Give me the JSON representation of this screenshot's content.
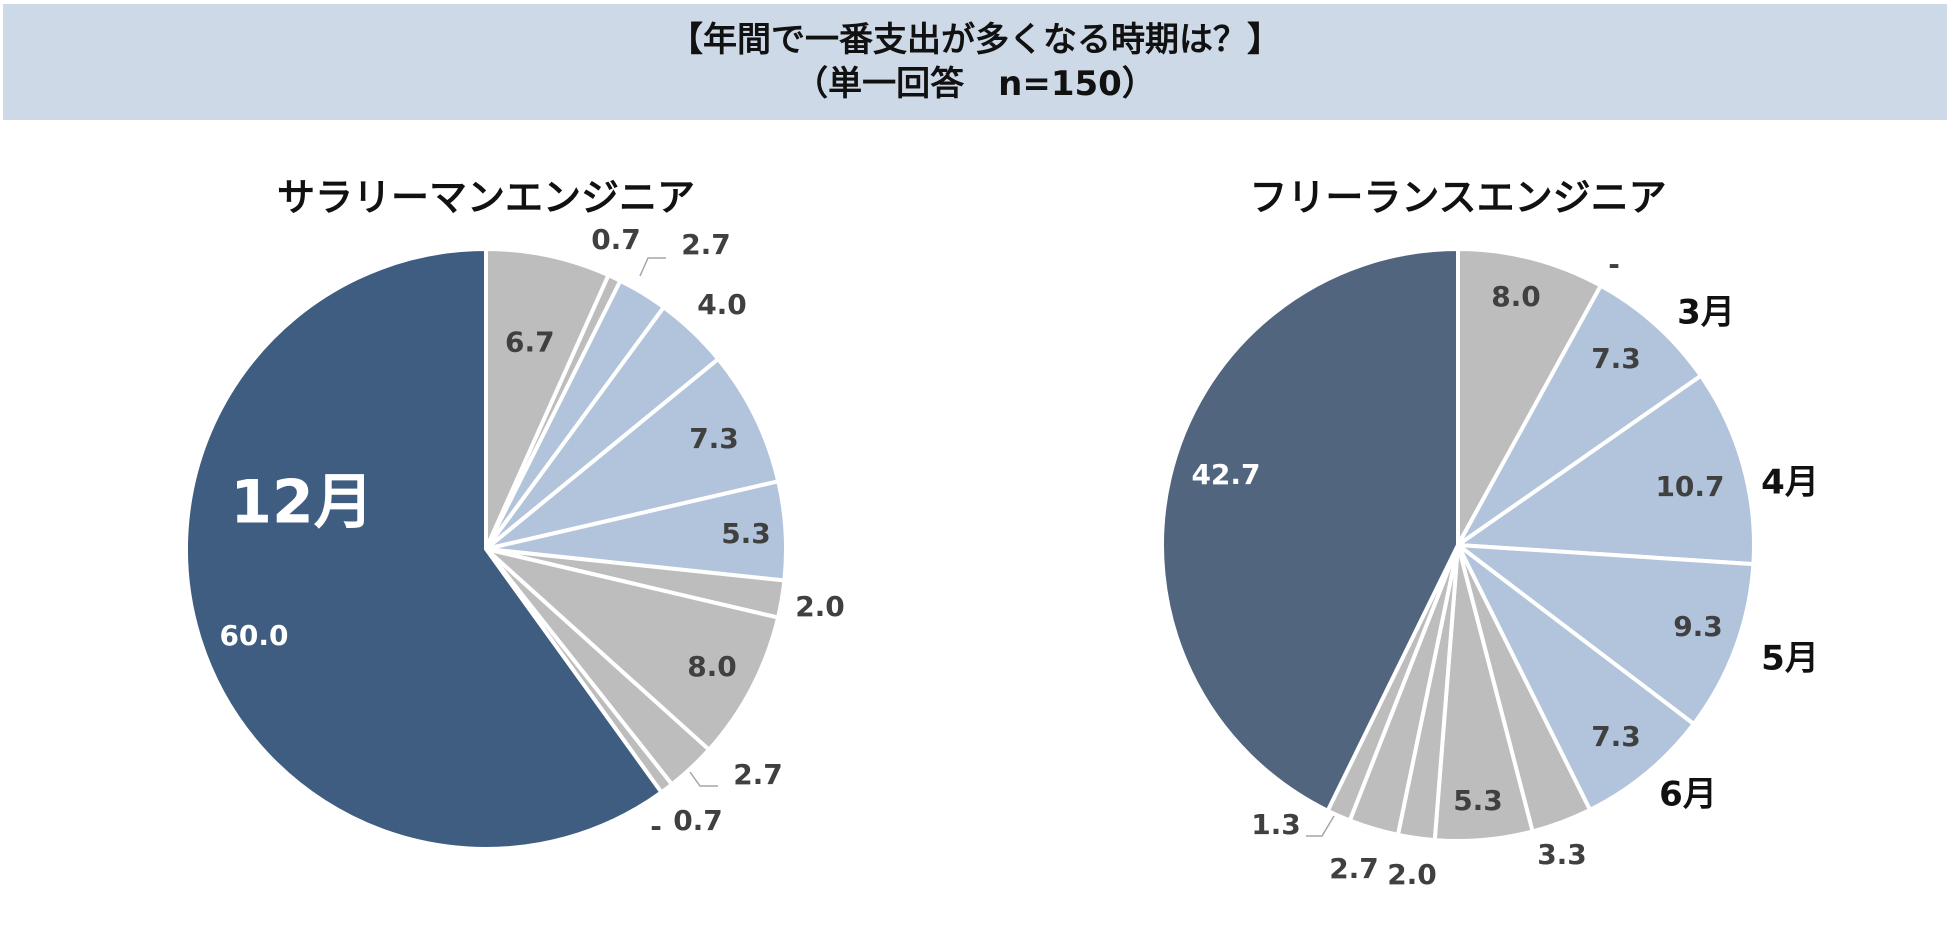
{
  "header": {
    "line1": "【年間で一番支出が多くなる時期は？】",
    "line2": "（単一回答　n=150）"
  },
  "colors": {
    "header_bg": "#ced9e7",
    "salaried_main": "#3f5d81",
    "freelance_main": "#52657f",
    "blue_light": "#b1c4dc",
    "gray": "#bdbdbd",
    "label_dark": "#404040",
    "label_white": "#ffffff",
    "separator": "#ffffff"
  },
  "chart_data": [
    {
      "type": "pie",
      "title": "サラリーマンエンジニア",
      "unit": "%",
      "start": "12 o'clock, clockwise",
      "slices": [
        {
          "label": "6.7",
          "value": 6.7,
          "color": "gray"
        },
        {
          "label": "0.7",
          "value": 0.7,
          "color": "gray"
        },
        {
          "label": "2.7",
          "value": 2.7,
          "color": "blue_light"
        },
        {
          "label": "4.0",
          "value": 4.0,
          "color": "blue_light"
        },
        {
          "label": "7.3",
          "value": 7.3,
          "color": "blue_light"
        },
        {
          "label": "5.3",
          "value": 5.3,
          "color": "blue_light"
        },
        {
          "label": "2.0",
          "value": 2.0,
          "color": "gray"
        },
        {
          "label": "8.0",
          "value": 8.0,
          "color": "gray"
        },
        {
          "label": "2.7",
          "value": 2.7,
          "color": "gray"
        },
        {
          "label": "0.7",
          "value": 0.7,
          "color": "gray"
        },
        {
          "label": "-",
          "value": 0,
          "color": "gray"
        },
        {
          "label": "60.0",
          "value": 60.0,
          "color": "salaried_main",
          "month": "12月"
        }
      ]
    },
    {
      "type": "pie",
      "title": "フリーランスエンジニア",
      "unit": "%",
      "start": "12 o'clock, clockwise",
      "slices": [
        {
          "label": "8.0",
          "value": 8.0,
          "color": "gray"
        },
        {
          "label": "-",
          "value": 0,
          "color": "gray"
        },
        {
          "label": "7.3",
          "value": 7.3,
          "color": "blue_light",
          "month": "3月"
        },
        {
          "label": "10.7",
          "value": 10.7,
          "color": "blue_light",
          "month": "4月"
        },
        {
          "label": "9.3",
          "value": 9.3,
          "color": "blue_light",
          "month": "5月"
        },
        {
          "label": "7.3",
          "value": 7.3,
          "color": "blue_light",
          "month": "6月"
        },
        {
          "label": "3.3",
          "value": 3.3,
          "color": "gray"
        },
        {
          "label": "5.3",
          "value": 5.3,
          "color": "gray"
        },
        {
          "label": "2.0",
          "value": 2.0,
          "color": "gray"
        },
        {
          "label": "2.7",
          "value": 2.7,
          "color": "gray"
        },
        {
          "label": "1.3",
          "value": 1.3,
          "color": "gray"
        },
        {
          "label": "42.7",
          "value": 42.7,
          "color": "freelance_main"
        }
      ]
    }
  ]
}
